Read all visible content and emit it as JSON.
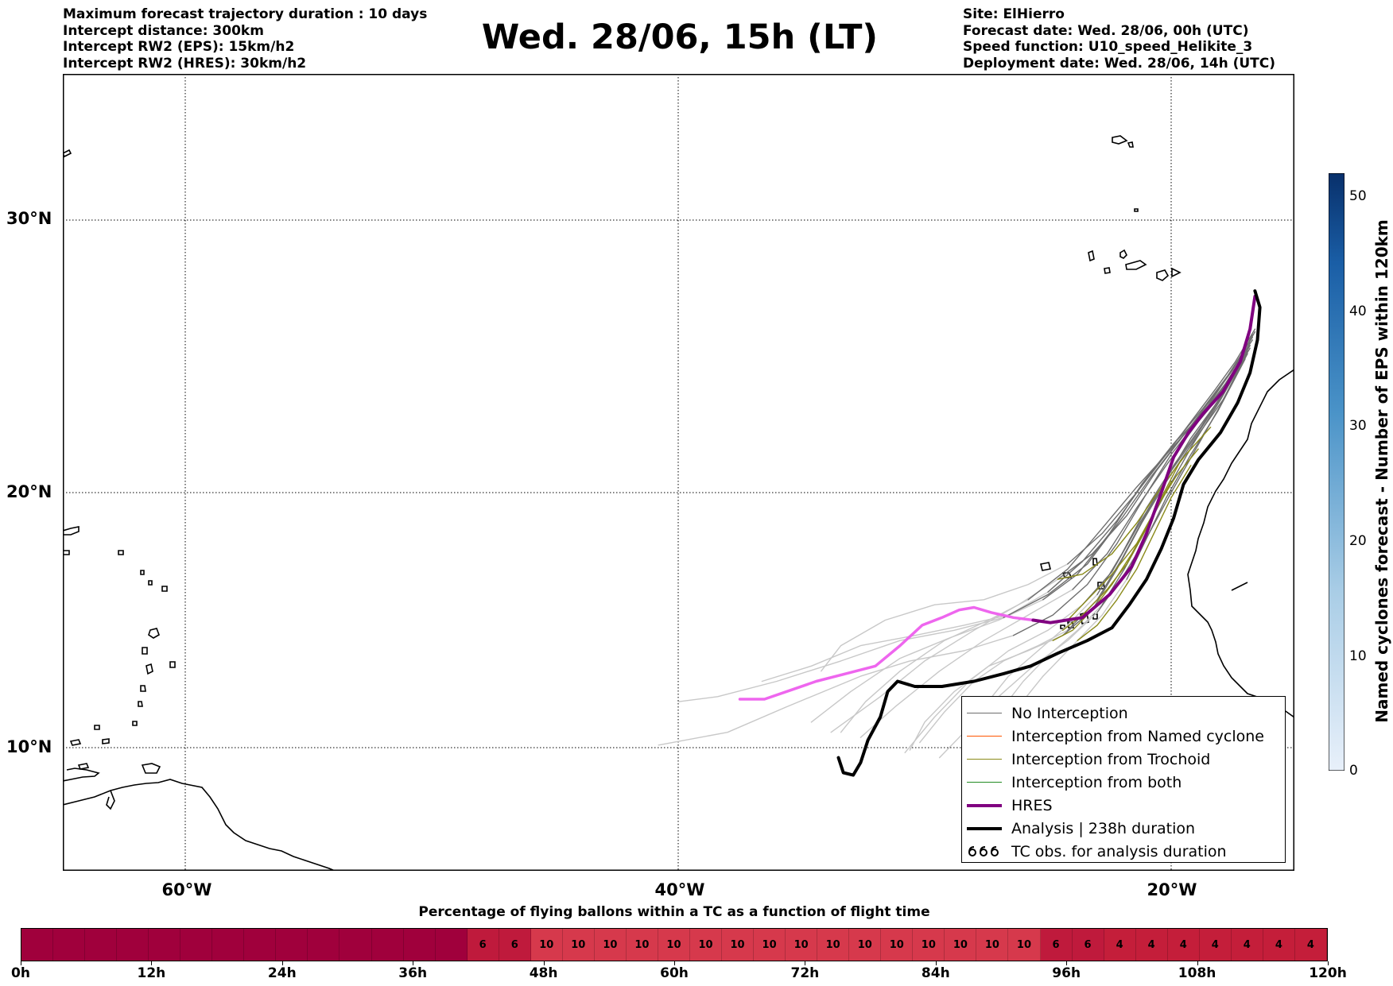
{
  "header": {
    "info_left": [
      "Maximum forecast trajectory duration : 10 days",
      "Intercept distance: 300km",
      "Intercept RW2 (EPS):  15km/h2",
      "Intercept RW2 (HRES): 30km/h2"
    ],
    "title": "Wed. 28/06, 15h (LT)",
    "info_right": [
      "Site: ElHierro",
      "Forecast date: Wed. 28/06, 00h (UTC)",
      "Speed function: U10_speed_Helikite_3",
      "Deployment date: Wed. 28/06, 14h (UTC)"
    ]
  },
  "map": {
    "lat_labels": [
      "30°N",
      "20°N",
      "10°N"
    ],
    "lon_labels": [
      "60°W",
      "40°W",
      "20°W"
    ],
    "grid": "dotted",
    "extent": {
      "lon_min": -65,
      "lon_max": -15,
      "lat_min": 5.4,
      "lat_max": 35.3
    },
    "track_colors": {
      "no_interception": "#6e6e6e",
      "no_interception_late": "#c8c8c8",
      "named_cyclone": "#ff5500",
      "trochoid": "#8a8a1a",
      "both": "#228b22",
      "hres": "#800080",
      "hres_late": "#ee66ee",
      "analysis": "#000000"
    },
    "hres_track": [
      [
        -16.6,
        27.2
      ],
      [
        -16.8,
        26.0
      ],
      [
        -17.2,
        24.8
      ],
      [
        -17.9,
        23.7
      ],
      [
        -18.7,
        22.9
      ],
      [
        -19.3,
        22.2
      ],
      [
        -19.9,
        21.3
      ],
      [
        -20.4,
        20.0
      ],
      [
        -21.0,
        18.4
      ],
      [
        -21.6,
        17.1
      ],
      [
        -22.5,
        16.0
      ],
      [
        -23.6,
        15.1
      ],
      [
        -24.9,
        14.9
      ],
      [
        -25.6,
        15.0
      ]
    ],
    "hres_track_late": [
      [
        -25.6,
        15.0
      ],
      [
        -26.4,
        15.1
      ],
      [
        -27.3,
        15.3
      ],
      [
        -28.0,
        15.5
      ],
      [
        -28.6,
        15.4
      ],
      [
        -29.3,
        15.1
      ],
      [
        -30.1,
        14.8
      ],
      [
        -31.0,
        14.0
      ],
      [
        -32.0,
        13.2
      ],
      [
        -33.2,
        12.9
      ],
      [
        -34.4,
        12.6
      ],
      [
        -35.3,
        12.3
      ],
      [
        -36.5,
        11.9
      ],
      [
        -37.5,
        11.9
      ]
    ],
    "analysis_track": [
      [
        -16.6,
        27.4
      ],
      [
        -16.4,
        26.8
      ],
      [
        -16.5,
        25.6
      ],
      [
        -16.8,
        24.4
      ],
      [
        -17.3,
        23.3
      ],
      [
        -18.0,
        22.2
      ],
      [
        -18.9,
        21.2
      ],
      [
        -19.5,
        20.3
      ],
      [
        -19.9,
        19.0
      ],
      [
        -20.4,
        17.8
      ],
      [
        -21.0,
        16.6
      ],
      [
        -21.7,
        15.6
      ],
      [
        -22.4,
        14.7
      ],
      [
        -23.4,
        14.2
      ],
      [
        -24.6,
        13.7
      ],
      [
        -25.7,
        13.2
      ],
      [
        -26.8,
        12.9
      ],
      [
        -28.0,
        12.6
      ],
      [
        -29.3,
        12.4
      ],
      [
        -30.4,
        12.4
      ],
      [
        -31.1,
        12.6
      ],
      [
        -31.5,
        12.2
      ],
      [
        -31.8,
        11.2
      ],
      [
        -32.3,
        10.3
      ],
      [
        -32.6,
        9.4
      ],
      [
        -32.9,
        8.9
      ],
      [
        -33.3,
        9.0
      ],
      [
        -33.5,
        9.6
      ]
    ],
    "ensemble_tracks": [
      [
        [
          -16.7,
          25.8
        ],
        [
          -17.6,
          24.2
        ],
        [
          -18.6,
          23.0
        ],
        [
          -19.9,
          21.8
        ],
        [
          -21.2,
          20.3
        ],
        [
          -22.5,
          18.4
        ],
        [
          -23.8,
          16.8
        ],
        [
          -25.2,
          15.8
        ],
        [
          -27.0,
          15.0
        ],
        [
          -29.0,
          14.3
        ],
        [
          -31.0,
          13.5
        ],
        [
          -33.0,
          12.2
        ],
        [
          -34.6,
          11.0
        ]
      ],
      [
        [
          -16.8,
          25.5
        ],
        [
          -17.8,
          23.8
        ],
        [
          -18.9,
          22.6
        ],
        [
          -20.2,
          21.0
        ],
        [
          -21.4,
          19.4
        ],
        [
          -22.6,
          17.6
        ],
        [
          -24.0,
          16.2
        ],
        [
          -25.8,
          15.2
        ],
        [
          -27.6,
          14.2
        ],
        [
          -29.4,
          13.0
        ],
        [
          -31.2,
          11.6
        ],
        [
          -32.6,
          10.4
        ]
      ],
      [
        [
          -16.6,
          25.9
        ],
        [
          -17.5,
          24.5
        ],
        [
          -18.4,
          23.4
        ],
        [
          -19.5,
          22.1
        ],
        [
          -20.6,
          20.8
        ],
        [
          -21.8,
          19.1
        ],
        [
          -23.2,
          17.6
        ],
        [
          -24.6,
          16.6
        ],
        [
          -26.2,
          15.6
        ],
        [
          -28.0,
          14.6
        ],
        [
          -30.0,
          13.4
        ],
        [
          -31.8,
          12.0
        ],
        [
          -33.8,
          10.6
        ]
      ],
      [
        [
          -16.9,
          25.2
        ],
        [
          -17.9,
          23.6
        ],
        [
          -19.2,
          22.0
        ],
        [
          -20.4,
          20.2
        ],
        [
          -21.4,
          18.6
        ],
        [
          -22.4,
          16.9
        ],
        [
          -23.6,
          15.6
        ],
        [
          -25.0,
          14.6
        ],
        [
          -26.6,
          13.8
        ],
        [
          -28.2,
          12.6
        ],
        [
          -29.6,
          11.2
        ],
        [
          -30.8,
          9.8
        ]
      ],
      [
        [
          -17.0,
          25.0
        ],
        [
          -18.0,
          23.2
        ],
        [
          -19.0,
          21.6
        ],
        [
          -20.0,
          20.0
        ],
        [
          -20.9,
          18.4
        ],
        [
          -21.9,
          16.8
        ],
        [
          -23.0,
          15.3
        ],
        [
          -24.2,
          14.2
        ],
        [
          -25.6,
          13.2
        ],
        [
          -27.0,
          12.0
        ],
        [
          -28.2,
          10.8
        ],
        [
          -29.4,
          9.6
        ]
      ],
      [
        [
          -16.8,
          25.4
        ],
        [
          -17.7,
          24.0
        ],
        [
          -18.8,
          22.8
        ],
        [
          -20.0,
          21.4
        ],
        [
          -21.1,
          19.8
        ],
        [
          -22.2,
          18.0
        ],
        [
          -23.4,
          16.4
        ],
        [
          -24.8,
          15.2
        ],
        [
          -26.4,
          14.4
        ],
        [
          -28.4,
          13.8
        ],
        [
          -30.6,
          13.4
        ],
        [
          -32.6,
          12.8
        ],
        [
          -35.6,
          11.6
        ],
        [
          -38.0,
          10.6
        ],
        [
          -40.8,
          10.1
        ]
      ],
      [
        [
          -16.7,
          25.6
        ],
        [
          -17.6,
          24.4
        ],
        [
          -18.5,
          23.2
        ],
        [
          -19.6,
          22.0
        ],
        [
          -20.8,
          20.6
        ],
        [
          -22.0,
          19.0
        ],
        [
          -23.4,
          17.2
        ],
        [
          -25.0,
          16.0
        ],
        [
          -26.8,
          15.1
        ],
        [
          -28.8,
          14.6
        ],
        [
          -31.0,
          14.2
        ],
        [
          -33.4,
          13.4
        ],
        [
          -36.0,
          12.6
        ],
        [
          -38.4,
          12.0
        ],
        [
          -40.0,
          11.8
        ]
      ],
      [
        [
          -16.9,
          25.1
        ],
        [
          -17.9,
          23.4
        ],
        [
          -19.0,
          22.0
        ],
        [
          -20.2,
          20.4
        ],
        [
          -21.2,
          18.8
        ],
        [
          -22.2,
          17.0
        ],
        [
          -23.2,
          15.4
        ],
        [
          -24.4,
          14.4
        ],
        [
          -25.8,
          13.8
        ],
        [
          -27.4,
          13.2
        ],
        [
          -28.8,
          12.2
        ],
        [
          -30.0,
          11.0
        ],
        [
          -30.6,
          9.9
        ]
      ],
      [
        [
          -16.8,
          25.3
        ],
        [
          -17.8,
          23.8
        ],
        [
          -18.8,
          22.4
        ],
        [
          -19.9,
          21.0
        ],
        [
          -21.0,
          19.4
        ],
        [
          -22.0,
          17.6
        ],
        [
          -23.0,
          16.0
        ],
        [
          -24.2,
          14.8
        ],
        [
          -25.4,
          13.8
        ],
        [
          -26.6,
          12.8
        ],
        [
          -27.6,
          11.6
        ],
        [
          -28.2,
          10.2
        ]
      ],
      [
        [
          -16.6,
          26.0
        ],
        [
          -17.4,
          24.8
        ],
        [
          -18.2,
          23.8
        ],
        [
          -19.2,
          22.6
        ],
        [
          -20.2,
          21.4
        ],
        [
          -21.4,
          20.0
        ],
        [
          -22.8,
          18.4
        ],
        [
          -24.2,
          17.2
        ],
        [
          -25.8,
          16.4
        ],
        [
          -27.6,
          15.8
        ],
        [
          -29.6,
          15.6
        ],
        [
          -31.6,
          15.0
        ],
        [
          -33.4,
          14.0
        ],
        [
          -34.2,
          13.0
        ]
      ],
      [
        [
          -17.0,
          24.9
        ],
        [
          -18.1,
          23.0
        ],
        [
          -19.2,
          21.4
        ],
        [
          -20.2,
          19.8
        ],
        [
          -21.0,
          18.2
        ],
        [
          -21.8,
          16.6
        ],
        [
          -22.8,
          15.2
        ],
        [
          -24.0,
          14.0
        ],
        [
          -25.2,
          12.8
        ],
        [
          -26.2,
          11.6
        ],
        [
          -26.8,
          10.4
        ]
      ],
      [
        [
          -16.8,
          25.4
        ],
        [
          -17.8,
          24.0
        ],
        [
          -18.8,
          22.8
        ],
        [
          -20.0,
          21.6
        ],
        [
          -21.4,
          20.2
        ],
        [
          -22.8,
          18.6
        ],
        [
          -24.2,
          17.0
        ],
        [
          -25.8,
          15.8
        ],
        [
          -27.4,
          15.0
        ],
        [
          -29.2,
          14.2
        ],
        [
          -31.0,
          13.0
        ],
        [
          -32.4,
          11.8
        ],
        [
          -33.4,
          10.6
        ]
      ],
      [
        [
          -16.9,
          25.2
        ],
        [
          -17.9,
          23.6
        ],
        [
          -18.9,
          22.2
        ],
        [
          -20.0,
          20.8
        ],
        [
          -21.0,
          19.2
        ],
        [
          -22.0,
          17.4
        ],
        [
          -23.0,
          15.8
        ],
        [
          -24.2,
          14.6
        ],
        [
          -25.4,
          14.0
        ],
        [
          -26.8,
          13.4
        ],
        [
          -28.0,
          12.6
        ],
        [
          -29.2,
          11.4
        ],
        [
          -30.2,
          10.2
        ]
      ],
      [
        [
          -16.7,
          25.7
        ],
        [
          -17.7,
          24.3
        ],
        [
          -18.7,
          23.1
        ],
        [
          -19.8,
          21.9
        ],
        [
          -21.0,
          20.5
        ],
        [
          -22.2,
          18.9
        ],
        [
          -23.6,
          17.3
        ],
        [
          -25.0,
          16.1
        ],
        [
          -26.6,
          15.2
        ],
        [
          -28.4,
          14.8
        ],
        [
          -30.4,
          14.4
        ],
        [
          -32.6,
          14.0
        ],
        [
          -34.6,
          13.2
        ],
        [
          -36.6,
          12.6
        ]
      ],
      [
        [
          -17.0,
          25.0
        ],
        [
          -18.0,
          23.4
        ],
        [
          -19.1,
          21.8
        ],
        [
          -20.1,
          20.2
        ],
        [
          -21.0,
          18.6
        ],
        [
          -21.9,
          17.0
        ],
        [
          -22.8,
          15.6
        ],
        [
          -23.8,
          14.6
        ],
        [
          -25.0,
          13.6
        ],
        [
          -26.0,
          12.6
        ],
        [
          -26.8,
          11.6
        ],
        [
          -27.2,
          10.6
        ]
      ]
    ],
    "trochoid_tracks": [
      [
        [
          -18.9,
          21.6
        ],
        [
          -19.8,
          20.6
        ],
        [
          -20.6,
          19.4
        ],
        [
          -21.4,
          18.0
        ],
        [
          -22.4,
          16.8
        ],
        [
          -23.4,
          15.8
        ],
        [
          -24.2,
          15.0
        ]
      ],
      [
        [
          -19.6,
          21.2
        ],
        [
          -20.4,
          19.8
        ],
        [
          -21.0,
          18.6
        ],
        [
          -21.8,
          17.2
        ],
        [
          -22.6,
          16.2
        ],
        [
          -23.6,
          15.2
        ],
        [
          -24.4,
          14.6
        ]
      ],
      [
        [
          -18.4,
          22.4
        ],
        [
          -19.4,
          21.4
        ],
        [
          -20.4,
          20.2
        ],
        [
          -21.4,
          18.8
        ],
        [
          -22.4,
          17.6
        ],
        [
          -23.6,
          16.8
        ],
        [
          -24.6,
          16.6
        ]
      ],
      [
        [
          -20.0,
          20.4
        ],
        [
          -20.8,
          19.0
        ],
        [
          -21.6,
          17.6
        ],
        [
          -22.4,
          16.4
        ],
        [
          -23.2,
          15.4
        ],
        [
          -24.0,
          14.6
        ],
        [
          -24.8,
          14.2
        ]
      ],
      [
        [
          -19.2,
          21.0
        ],
        [
          -20.0,
          19.8
        ],
        [
          -20.8,
          18.2
        ],
        [
          -21.4,
          17.0
        ],
        [
          -22.2,
          15.8
        ],
        [
          -23.0,
          14.8
        ],
        [
          -23.8,
          14.2
        ]
      ]
    ],
    "legend": {
      "items": [
        {
          "label": "No Interception",
          "color": "#6e6e6e",
          "width": 1.5
        },
        {
          "label": "Interception from Named cyclone",
          "color": "#ff5500",
          "width": 1.5
        },
        {
          "label": "Interception from Trochoid",
          "color": "#8a8a1a",
          "width": 1.5
        },
        {
          "label": "Interception from both",
          "color": "#228b22",
          "width": 1.5
        },
        {
          "label": "HRES",
          "color": "#800080",
          "width": 4
        },
        {
          "label": "Analysis | 238h duration",
          "color": "#000000",
          "width": 4
        },
        {
          "label": "TC obs. for analysis duration",
          "symbol": "cyclone-symbols"
        }
      ]
    }
  },
  "colorbar": {
    "label": "Named cyclones forecast - Number of EPS within 120km",
    "ticks": [
      "0",
      "10",
      "20",
      "30",
      "40",
      "50"
    ],
    "tick_values": [
      0,
      10,
      20,
      30,
      40,
      50
    ],
    "max": 52,
    "color_low": "#e6eef8",
    "color_high": "#08306b"
  },
  "percentage_bar": {
    "title": "Percentage of flying ballons within a TC as a function of flight time",
    "hour_labels": [
      "0h",
      "12h",
      "24h",
      "36h",
      "48h",
      "60h",
      "72h",
      "84h",
      "96h",
      "108h",
      "120h"
    ],
    "cells": [
      "",
      "",
      "",
      "",
      "",
      "",
      "",
      "",
      "",
      "",
      "",
      "",
      "",
      "",
      "6",
      "6",
      "10",
      "10",
      "10",
      "10",
      "10",
      "10",
      "10",
      "10",
      "10",
      "10",
      "10",
      "10",
      "10",
      "10",
      "10",
      "10",
      "6",
      "6",
      "4",
      "4",
      "4",
      "4",
      "4",
      "4",
      "4"
    ],
    "cell_colors": {
      "0": "#a0003c",
      "4": "#c41e3a",
      "6": "#bf1a3c",
      "10": "#d6394c"
    }
  }
}
